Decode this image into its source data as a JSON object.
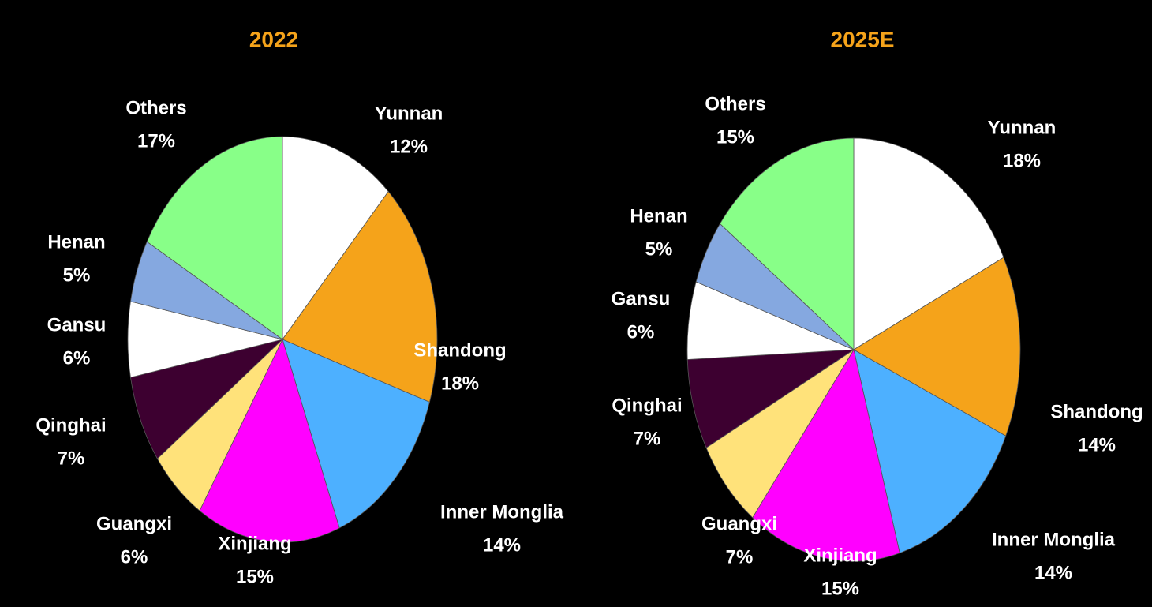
{
  "chart_data": [
    {
      "type": "pie",
      "title": "2022",
      "categories": [
        "Yunnan",
        "Shandong",
        "Inner Monglia",
        "Xinjiang",
        "Guangxi",
        "Qinghai",
        "Gansu",
        "Henan",
        "Others"
      ],
      "values": [
        12,
        18,
        14,
        15,
        6,
        7,
        6,
        5,
        17
      ],
      "value_labels": [
        "12%",
        "18%",
        "14%",
        "15%",
        "6%",
        "7%",
        "6%",
        "5%",
        "17%"
      ],
      "colors": [
        "#ffffff",
        "#f5a31a",
        "#4db0ff",
        "#ff00ff",
        "#ffe27a",
        "#3d0030",
        "#ffffff",
        "#85a8e0",
        "#88ff88"
      ]
    },
    {
      "type": "pie",
      "title": "2025E",
      "categories": [
        "Yunnan",
        "Shandong",
        "Inner Monglia",
        "Xinjiang",
        "Guangxi",
        "Qinghai",
        "Gansu",
        "Henan",
        "Others"
      ],
      "values": [
        18,
        14,
        14,
        15,
        7,
        7,
        6,
        5,
        15
      ],
      "value_labels": [
        "18%",
        "14%",
        "14%",
        "15%",
        "7%",
        "7%",
        "6%",
        "5%",
        "15%"
      ],
      "colors": [
        "#ffffff",
        "#f5a31a",
        "#4db0ff",
        "#ff00ff",
        "#ffe27a",
        "#3d0030",
        "#ffffff",
        "#85a8e0",
        "#88ff88"
      ]
    }
  ]
}
